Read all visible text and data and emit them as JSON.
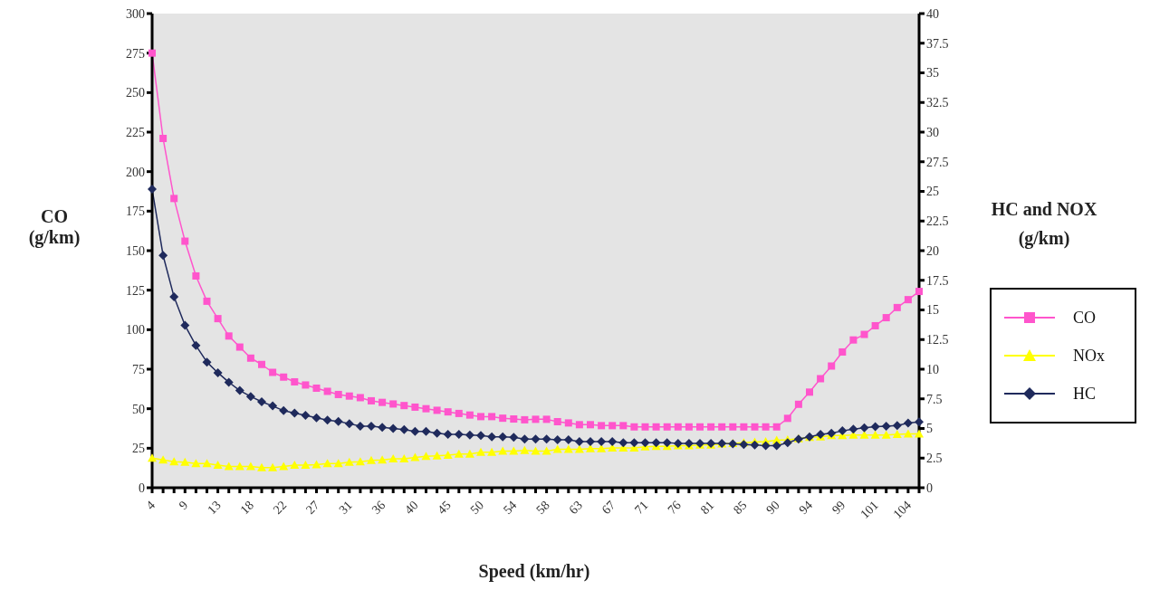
{
  "chart_data": {
    "type": "line",
    "xlabel": "Speed (km/hr)",
    "ylabel": "CO (g/km)",
    "y2label": "HC and NOX (g/km)",
    "categories": [
      "4",
      null,
      null,
      "9",
      null,
      null,
      "13",
      null,
      null,
      "18",
      null,
      null,
      "22",
      null,
      null,
      "27",
      null,
      null,
      "31",
      null,
      null,
      "36",
      null,
      null,
      "40",
      null,
      null,
      "45",
      null,
      null,
      "50",
      null,
      null,
      "54",
      null,
      null,
      "58",
      null,
      null,
      "63",
      null,
      null,
      "67",
      null,
      null,
      "71",
      null,
      null,
      "76",
      null,
      null,
      "81",
      null,
      null,
      "85",
      null,
      null,
      "90",
      null,
      null,
      "94",
      null,
      null,
      "99",
      null,
      null,
      "101",
      null,
      null,
      "104",
      null
    ],
    "ylim": [
      0,
      300
    ],
    "yticks": [
      0,
      25,
      50,
      75,
      100,
      125,
      150,
      175,
      200,
      225,
      250,
      275,
      300
    ],
    "y2lim": [
      0,
      40
    ],
    "y2ticks": [
      0,
      2.5,
      5,
      7.5,
      10,
      12.5,
      15,
      17.5,
      20,
      22.5,
      25,
      27.5,
      30,
      32.5,
      35,
      37.5,
      40
    ],
    "grid": false,
    "legend": "right",
    "series": [
      {
        "name": "CO",
        "color": "#ff55cc",
        "marker": "square",
        "values": [
          275,
          221,
          183,
          156,
          134,
          118,
          107,
          96,
          89,
          82,
          78,
          73,
          70,
          67,
          65,
          63,
          61,
          59,
          58,
          57,
          55,
          54,
          53,
          52,
          51,
          50,
          49,
          48,
          47,
          46,
          45,
          45,
          44,
          43.5,
          43,
          43.3,
          43.3,
          41.8,
          41,
          39.9,
          39.9,
          39.3,
          39.3,
          39.3,
          38.5,
          38.5,
          38.5,
          38.5,
          38.5,
          38.5,
          38.5,
          38.5,
          38.5,
          38.5,
          38.5,
          38.5,
          38.5,
          38.5,
          43.9,
          52.8,
          60.5,
          69,
          77,
          85.9,
          93.5,
          97,
          102.5,
          107.6,
          114,
          119,
          124.2
        ]
      },
      {
        "name": "NOx",
        "color": "#ffff00",
        "marker": "triangle",
        "axis": "y2",
        "values": [
          2.5,
          2.35,
          2.2,
          2.15,
          2.05,
          2.05,
          1.9,
          1.8,
          1.8,
          1.8,
          1.7,
          1.7,
          1.8,
          1.9,
          1.9,
          1.95,
          2.05,
          2.05,
          2.15,
          2.2,
          2.3,
          2.35,
          2.45,
          2.45,
          2.55,
          2.65,
          2.7,
          2.75,
          2.85,
          2.85,
          3.0,
          3.0,
          3.1,
          3.1,
          3.15,
          3.1,
          3.1,
          3.25,
          3.25,
          3.25,
          3.3,
          3.3,
          3.35,
          3.35,
          3.35,
          3.45,
          3.5,
          3.5,
          3.55,
          3.55,
          3.6,
          3.6,
          3.7,
          3.75,
          3.8,
          3.85,
          3.9,
          4.0,
          4.05,
          4.15,
          4.25,
          4.3,
          4.4,
          4.4,
          4.45,
          4.45,
          4.45,
          4.45,
          4.5,
          4.55,
          4.55
        ]
      },
      {
        "name": "HC",
        "color": "#1f2a5c",
        "marker": "diamond",
        "axis": "y2",
        "values": [
          25.2,
          19.6,
          16.1,
          13.7,
          12.0,
          10.6,
          9.7,
          8.9,
          8.2,
          7.7,
          7.25,
          6.9,
          6.5,
          6.3,
          6.1,
          5.9,
          5.7,
          5.6,
          5.4,
          5.2,
          5.2,
          5.1,
          5.0,
          4.9,
          4.75,
          4.75,
          4.6,
          4.5,
          4.5,
          4.45,
          4.4,
          4.3,
          4.3,
          4.25,
          4.1,
          4.1,
          4.1,
          4.05,
          4.05,
          3.9,
          3.9,
          3.9,
          3.9,
          3.8,
          3.8,
          3.8,
          3.8,
          3.8,
          3.75,
          3.75,
          3.75,
          3.75,
          3.75,
          3.7,
          3.65,
          3.6,
          3.55,
          3.55,
          3.8,
          4.1,
          4.3,
          4.5,
          4.6,
          4.8,
          4.95,
          5.05,
          5.15,
          5.2,
          5.25,
          5.45,
          5.55
        ]
      }
    ]
  }
}
